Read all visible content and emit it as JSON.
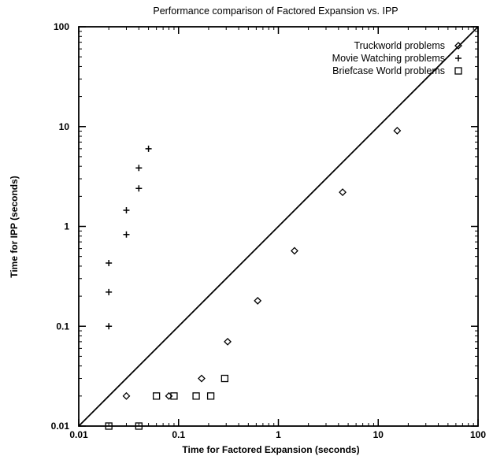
{
  "chart_data": {
    "type": "scatter",
    "title": "Performance comparison of Factored Expansion vs. IPP",
    "xlabel": "Time for Factored Expansion (seconds)",
    "ylabel": "Time for IPP (seconds)",
    "xscale": "log",
    "yscale": "log",
    "xlim": [
      0.01,
      100
    ],
    "ylim": [
      0.01,
      100
    ],
    "x_ticks": [
      {
        "value": 0.01,
        "label": "0.01"
      },
      {
        "value": 0.1,
        "label": "0.1"
      },
      {
        "value": 1,
        "label": "1"
      },
      {
        "value": 10,
        "label": "10"
      },
      {
        "value": 100,
        "label": "100"
      }
    ],
    "y_ticks": [
      {
        "value": 0.01,
        "label": "0.01"
      },
      {
        "value": 0.1,
        "label": "0.1"
      },
      {
        "value": 1,
        "label": "1"
      },
      {
        "value": 10,
        "label": "10"
      },
      {
        "value": 100,
        "label": "100"
      }
    ],
    "grid": false,
    "legend_position": "top-right",
    "reference_line": {
      "type": "y=x"
    },
    "series": [
      {
        "name": "Truckworld problems",
        "marker": "diamond",
        "points": [
          {
            "x": 0.03,
            "y": 0.02
          },
          {
            "x": 0.08,
            "y": 0.02
          },
          {
            "x": 0.17,
            "y": 0.03
          },
          {
            "x": 0.31,
            "y": 0.07
          },
          {
            "x": 0.62,
            "y": 0.18
          },
          {
            "x": 1.45,
            "y": 0.57
          },
          {
            "x": 4.4,
            "y": 2.2
          },
          {
            "x": 15.5,
            "y": 9.1
          }
        ]
      },
      {
        "name": "Movie Watching problems",
        "marker": "plus",
        "points": [
          {
            "x": 0.02,
            "y": 0.1
          },
          {
            "x": 0.02,
            "y": 0.22
          },
          {
            "x": 0.02,
            "y": 0.43
          },
          {
            "x": 0.03,
            "y": 0.83
          },
          {
            "x": 0.03,
            "y": 1.45
          },
          {
            "x": 0.04,
            "y": 2.4
          },
          {
            "x": 0.04,
            "y": 3.85
          },
          {
            "x": 0.05,
            "y": 6.0
          }
        ]
      },
      {
        "name": "Briefcase World problems",
        "marker": "square",
        "points": [
          {
            "x": 0.02,
            "y": 0.01
          },
          {
            "x": 0.04,
            "y": 0.01
          },
          {
            "x": 0.06,
            "y": 0.02
          },
          {
            "x": 0.09,
            "y": 0.02
          },
          {
            "x": 0.15,
            "y": 0.02
          },
          {
            "x": 0.21,
            "y": 0.02
          },
          {
            "x": 0.29,
            "y": 0.03
          }
        ]
      }
    ]
  }
}
